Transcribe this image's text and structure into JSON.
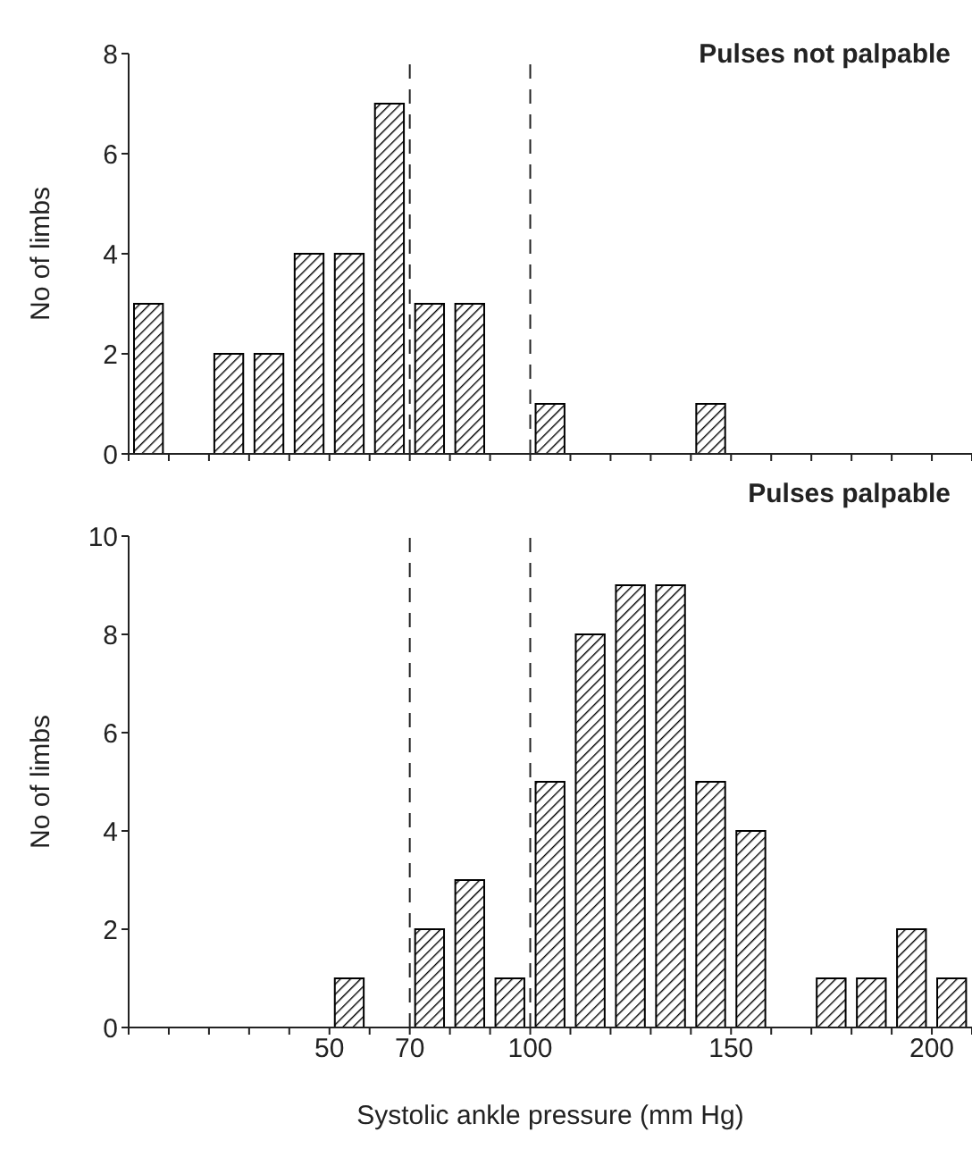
{
  "chart_data": [
    {
      "type": "histogram",
      "title": "Pulses not palpable",
      "ylabel": "No of limbs",
      "color": "#000000",
      "bins": [
        0,
        10,
        20,
        30,
        40,
        50,
        60,
        70,
        80,
        90,
        100,
        110,
        120,
        130,
        140,
        150,
        160,
        170,
        180,
        190,
        200,
        210
      ],
      "values": [
        3,
        0,
        2,
        2,
        4,
        4,
        7,
        3,
        3,
        0,
        1,
        0,
        0,
        0,
        1,
        0,
        0,
        0,
        0,
        0,
        0
      ],
      "xlim": [
        0,
        210
      ],
      "xticks": [
        {
          "value": 0,
          "label": null
        },
        {
          "value": 10,
          "label": null
        },
        {
          "value": 20,
          "label": null
        },
        {
          "value": 30,
          "label": null
        },
        {
          "value": 40,
          "label": null
        },
        {
          "value": 50,
          "label": null
        },
        {
          "value": 60,
          "label": null
        },
        {
          "value": 70,
          "label": null
        },
        {
          "value": 80,
          "label": null
        },
        {
          "value": 90,
          "label": null
        },
        {
          "value": 100,
          "label": null
        },
        {
          "value": 110,
          "label": null
        },
        {
          "value": 120,
          "label": null
        },
        {
          "value": 130,
          "label": null
        },
        {
          "value": 140,
          "label": null
        },
        {
          "value": 150,
          "label": null
        },
        {
          "value": 160,
          "label": null
        },
        {
          "value": 170,
          "label": null
        },
        {
          "value": 180,
          "label": null
        },
        {
          "value": 190,
          "label": null
        },
        {
          "value": 200,
          "label": null
        },
        {
          "value": 210,
          "label": null
        }
      ],
      "ylim": [
        0,
        8
      ],
      "yticks": [
        0,
        2,
        4,
        6,
        8
      ],
      "tick_labels": "y",
      "ref_lines": [
        {
          "axis": "x",
          "value": 70,
          "line_style": "dashed"
        },
        {
          "axis": "x",
          "value": 100,
          "line_style": "dashed"
        }
      ]
    },
    {
      "type": "histogram",
      "title": "Pulses palpable",
      "xlabel": "Systolic ankle pressure (mm Hg)",
      "ylabel": "No of limbs",
      "color": "#000000",
      "bins": [
        0,
        10,
        20,
        30,
        40,
        50,
        60,
        70,
        80,
        90,
        100,
        110,
        120,
        130,
        140,
        150,
        160,
        170,
        180,
        190,
        200,
        210
      ],
      "values": [
        0,
        0,
        0,
        0,
        0,
        1,
        0,
        2,
        3,
        1,
        5,
        8,
        9,
        9,
        5,
        4,
        0,
        1,
        1,
        2,
        1
      ],
      "xlim": [
        0,
        210
      ],
      "xticks": [
        {
          "value": 0,
          "label": null
        },
        {
          "value": 10,
          "label": null
        },
        {
          "value": 20,
          "label": null
        },
        {
          "value": 30,
          "label": null
        },
        {
          "value": 40,
          "label": null
        },
        50,
        {
          "value": 60,
          "label": null
        },
        70,
        {
          "value": 80,
          "label": null
        },
        {
          "value": 90,
          "label": null
        },
        100,
        {
          "value": 110,
          "label": null
        },
        {
          "value": 120,
          "label": null
        },
        {
          "value": 130,
          "label": null
        },
        {
          "value": 140,
          "label": null
        },
        150,
        {
          "value": 160,
          "label": null
        },
        {
          "value": 170,
          "label": null
        },
        {
          "value": 180,
          "label": null
        },
        {
          "value": 190,
          "label": null
        },
        200,
        {
          "value": 210,
          "label": null
        }
      ],
      "ylim": [
        0,
        10
      ],
      "yticks": [
        0,
        2,
        4,
        6,
        8,
        10
      ],
      "ref_lines": [
        {
          "axis": "x",
          "value": 70,
          "line_style": "dashed"
        },
        {
          "axis": "x",
          "value": 100,
          "line_style": "dashed"
        }
      ]
    }
  ]
}
